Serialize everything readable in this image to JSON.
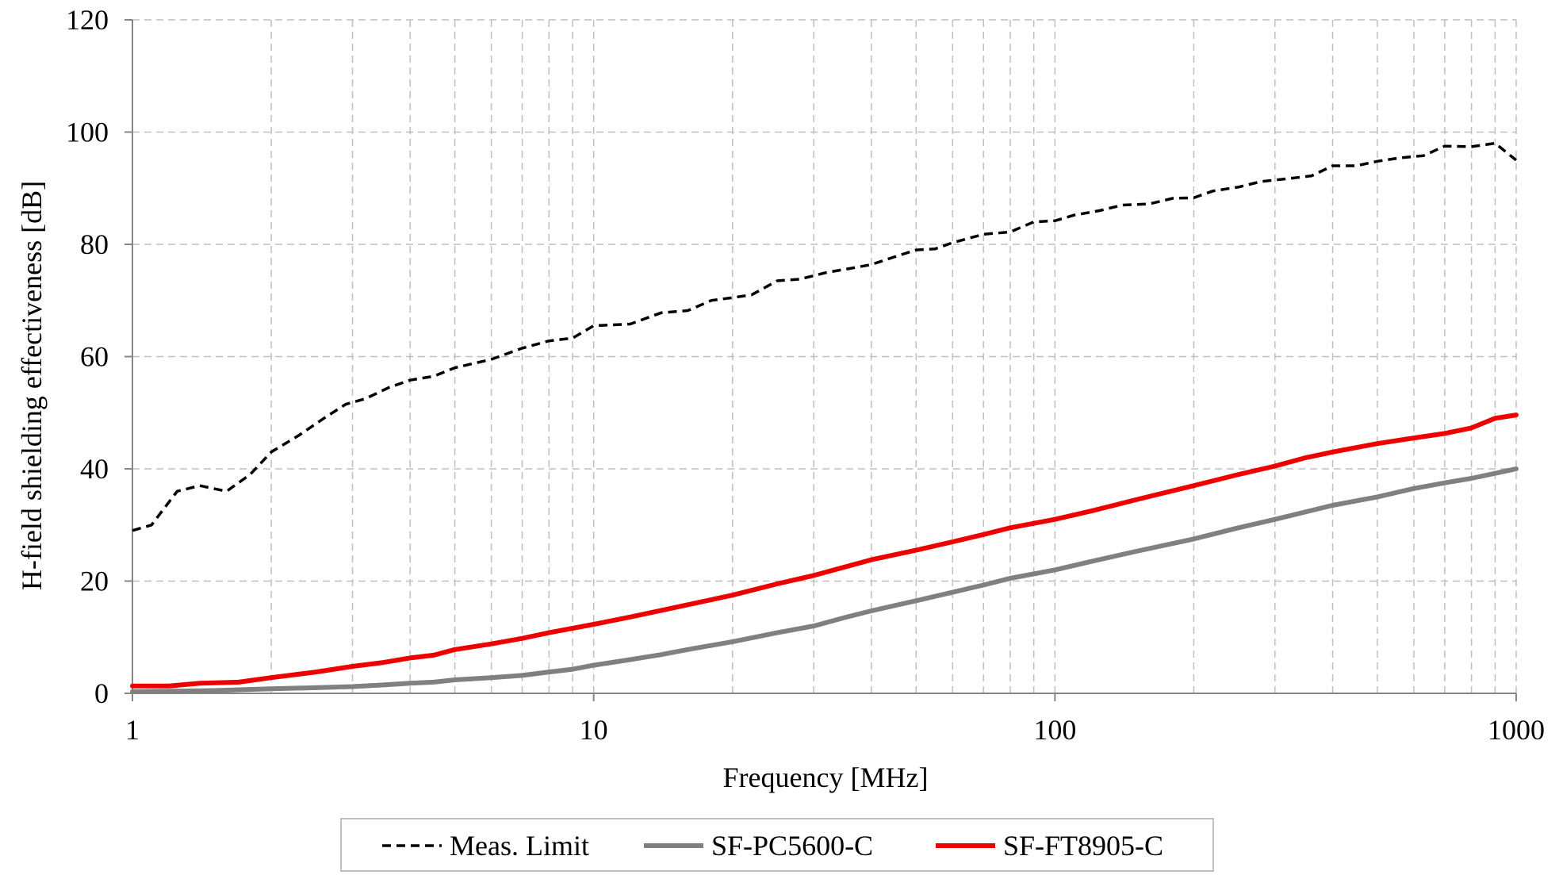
{
  "chart_data": {
    "type": "line",
    "xlabel": "Frequency [MHz]",
    "ylabel": "H-field shielding effectiveness [dB]",
    "x_scale": "log",
    "xlim": [
      1,
      1000
    ],
    "ylim": [
      0,
      120
    ],
    "x_ticks": [
      "1",
      "10",
      "100",
      "1000"
    ],
    "y_ticks": [
      "0",
      "20",
      "40",
      "60",
      "80",
      "100",
      "120"
    ],
    "grid": true,
    "legend_position": "bottom",
    "series": [
      {
        "name": "Meas. Limit",
        "color": "#000000",
        "style": "dashed",
        "points": [
          [
            1,
            29
          ],
          [
            1.1,
            30
          ],
          [
            1.25,
            36
          ],
          [
            1.4,
            37
          ],
          [
            1.6,
            36
          ],
          [
            1.8,
            39
          ],
          [
            2,
            43
          ],
          [
            2.3,
            46
          ],
          [
            2.6,
            49
          ],
          [
            2.9,
            51.5
          ],
          [
            3.2,
            52.5
          ],
          [
            3.6,
            54.5
          ],
          [
            4,
            55.8
          ],
          [
            4.5,
            56.5
          ],
          [
            5,
            58
          ],
          [
            6,
            59.5
          ],
          [
            7,
            61.5
          ],
          [
            8,
            62.8
          ],
          [
            9,
            63.3
          ],
          [
            10,
            65.5
          ],
          [
            12,
            65.8
          ],
          [
            14,
            67.8
          ],
          [
            16,
            68.2
          ],
          [
            18,
            70
          ],
          [
            20,
            70.5
          ],
          [
            22,
            71
          ],
          [
            25,
            73.5
          ],
          [
            28,
            73.8
          ],
          [
            32,
            75
          ],
          [
            36,
            75.7
          ],
          [
            40,
            76.4
          ],
          [
            45,
            77.8
          ],
          [
            50,
            79
          ],
          [
            55,
            79.2
          ],
          [
            60,
            80.3
          ],
          [
            70,
            81.8
          ],
          [
            80,
            82.2
          ],
          [
            90,
            84
          ],
          [
            100,
            84.2
          ],
          [
            110,
            85.2
          ],
          [
            125,
            86
          ],
          [
            140,
            87
          ],
          [
            160,
            87.2
          ],
          [
            180,
            88.2
          ],
          [
            200,
            88.3
          ],
          [
            220,
            89.5
          ],
          [
            250,
            90.2
          ],
          [
            280,
            91.2
          ],
          [
            320,
            91.7
          ],
          [
            360,
            92.2
          ],
          [
            400,
            94
          ],
          [
            450,
            94
          ],
          [
            500,
            94.8
          ],
          [
            560,
            95.4
          ],
          [
            630,
            95.8
          ],
          [
            700,
            97.5
          ],
          [
            800,
            97.4
          ],
          [
            900,
            98
          ],
          [
            1000,
            95
          ]
        ]
      },
      {
        "name": "SF-PC5600-C",
        "color": "#808080",
        "style": "solid",
        "points": [
          [
            1,
            0.3
          ],
          [
            1.5,
            0.5
          ],
          [
            2,
            0.8
          ],
          [
            2.5,
            1
          ],
          [
            3,
            1.2
          ],
          [
            3.5,
            1.5
          ],
          [
            4,
            1.8
          ],
          [
            4.5,
            2
          ],
          [
            5,
            2.4
          ],
          [
            6,
            2.8
          ],
          [
            7,
            3.2
          ],
          [
            8,
            3.8
          ],
          [
            9,
            4.3
          ],
          [
            10,
            5
          ],
          [
            12,
            6
          ],
          [
            14,
            6.9
          ],
          [
            16,
            7.8
          ],
          [
            20,
            9.2
          ],
          [
            25,
            10.8
          ],
          [
            30,
            12
          ],
          [
            35,
            13.5
          ],
          [
            40,
            14.7
          ],
          [
            50,
            16.5
          ],
          [
            60,
            18
          ],
          [
            70,
            19.3
          ],
          [
            80,
            20.5
          ],
          [
            100,
            22
          ],
          [
            120,
            23.5
          ],
          [
            150,
            25.3
          ],
          [
            200,
            27.5
          ],
          [
            250,
            29.5
          ],
          [
            300,
            31
          ],
          [
            400,
            33.5
          ],
          [
            500,
            35
          ],
          [
            600,
            36.5
          ],
          [
            700,
            37.5
          ],
          [
            800,
            38.3
          ],
          [
            900,
            39.2
          ],
          [
            1000,
            40
          ]
        ]
      },
      {
        "name": "SF-FT8905-C",
        "color": "#ee0000",
        "style": "solid",
        "points": [
          [
            1,
            1.3
          ],
          [
            1.2,
            1.3
          ],
          [
            1.4,
            1.8
          ],
          [
            1.7,
            2
          ],
          [
            2,
            2.8
          ],
          [
            2.5,
            3.8
          ],
          [
            3,
            4.8
          ],
          [
            3.5,
            5.5
          ],
          [
            4,
            6.3
          ],
          [
            4.5,
            6.8
          ],
          [
            5,
            7.8
          ],
          [
            6,
            8.8
          ],
          [
            7,
            9.8
          ],
          [
            8,
            10.8
          ],
          [
            10,
            12.3
          ],
          [
            12,
            13.6
          ],
          [
            15,
            15.3
          ],
          [
            20,
            17.5
          ],
          [
            25,
            19.5
          ],
          [
            30,
            21
          ],
          [
            35,
            22.5
          ],
          [
            40,
            23.8
          ],
          [
            50,
            25.5
          ],
          [
            60,
            27
          ],
          [
            70,
            28.3
          ],
          [
            80,
            29.5
          ],
          [
            100,
            31
          ],
          [
            120,
            32.5
          ],
          [
            150,
            34.5
          ],
          [
            200,
            37
          ],
          [
            250,
            39
          ],
          [
            300,
            40.5
          ],
          [
            350,
            42
          ],
          [
            400,
            43
          ],
          [
            500,
            44.5
          ],
          [
            600,
            45.5
          ],
          [
            700,
            46.3
          ],
          [
            800,
            47.3
          ],
          [
            900,
            49
          ],
          [
            1000,
            49.6
          ]
        ]
      }
    ]
  }
}
